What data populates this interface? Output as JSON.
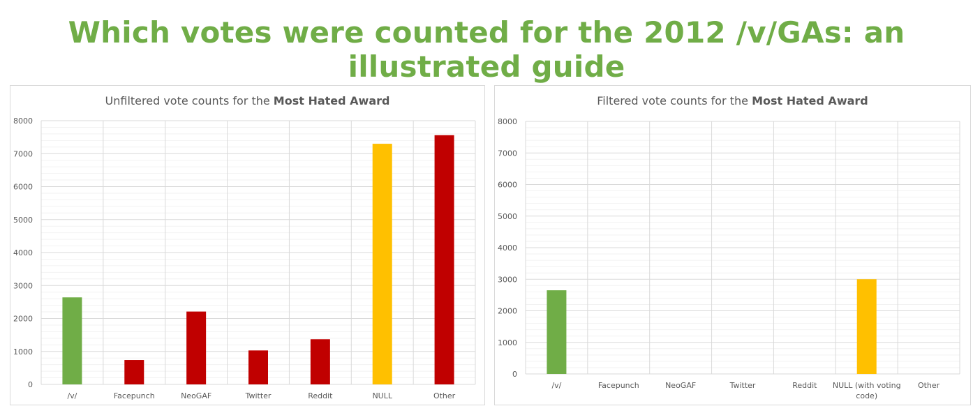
{
  "page": {
    "title": "Which votes were counted for the 2012 /v/GAs: an illustrated guide"
  },
  "chart_data": [
    {
      "type": "bar",
      "title_prefix": "Unfiltered vote counts for the ",
      "title_bold": "Most Hated Award",
      "categories": [
        "/v/",
        "Facepunch",
        "NeoGAF",
        "Twitter",
        "Reddit",
        "NULL",
        "Other"
      ],
      "values": [
        2640,
        740,
        2210,
        1030,
        1370,
        7300,
        7560
      ],
      "colors": [
        "#70ad47",
        "#c00000",
        "#c00000",
        "#c00000",
        "#c00000",
        "#ffc000",
        "#c00000"
      ],
      "ylim": [
        0,
        8000
      ],
      "yticks": [
        0,
        1000,
        2000,
        3000,
        4000,
        5000,
        6000,
        7000,
        8000
      ],
      "grid": true,
      "xlabel": "",
      "ylabel": ""
    },
    {
      "type": "bar",
      "title_prefix": "Filtered vote counts for the ",
      "title_bold": "Most Hated Award",
      "categories": [
        "/v/",
        "Facepunch",
        "NeoGAF",
        "Twitter",
        "Reddit",
        "NULL (with voting code)",
        "Other"
      ],
      "category_lines": [
        [
          "/v/"
        ],
        [
          "Facepunch"
        ],
        [
          "NeoGAF"
        ],
        [
          "Twitter"
        ],
        [
          "Reddit"
        ],
        [
          "NULL (with voting",
          "code)"
        ],
        [
          "Other"
        ]
      ],
      "values": [
        2650,
        0,
        0,
        0,
        0,
        3000,
        0
      ],
      "colors": [
        "#70ad47",
        "#c00000",
        "#c00000",
        "#c00000",
        "#c00000",
        "#ffc000",
        "#c00000"
      ],
      "ylim": [
        0,
        8000
      ],
      "yticks": [
        0,
        1000,
        2000,
        3000,
        4000,
        5000,
        6000,
        7000,
        8000
      ],
      "grid": true,
      "xlabel": "",
      "ylabel": ""
    }
  ]
}
